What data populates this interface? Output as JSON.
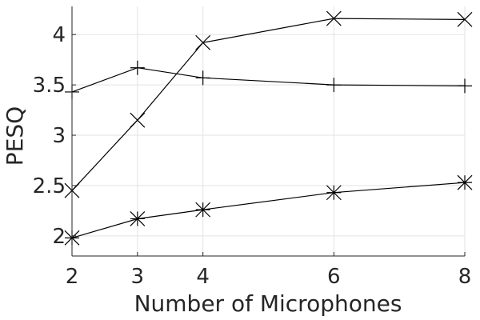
{
  "chart_data": {
    "type": "line",
    "title": "",
    "xlabel": "Number of Microphones",
    "ylabel": "PESQ",
    "x": [
      2,
      3,
      4,
      6,
      8
    ],
    "xlim": [
      2,
      8
    ],
    "ylim": [
      1.8,
      4.28
    ],
    "xticks": [
      2,
      3,
      4,
      6,
      8
    ],
    "xtick_labels": [
      "2",
      "3",
      "4",
      "6",
      "8"
    ],
    "yticks": [
      2,
      2.5,
      3,
      3.5,
      4
    ],
    "ytick_labels": [
      "2",
      "2.5",
      "3",
      "3.5",
      "4"
    ],
    "grid": true,
    "legend": "none",
    "series": [
      {
        "marker": "x",
        "values": [
          2.45,
          3.15,
          3.92,
          4.16,
          4.15
        ]
      },
      {
        "marker": "plus",
        "values": [
          3.43,
          3.67,
          3.57,
          3.5,
          3.49
        ]
      },
      {
        "marker": "asterisk",
        "values": [
          1.98,
          2.17,
          2.26,
          2.43,
          2.53
        ]
      }
    ],
    "colors": {
      "line": "#000000",
      "text": "#262626",
      "grid": "#e3e3e3"
    }
  }
}
